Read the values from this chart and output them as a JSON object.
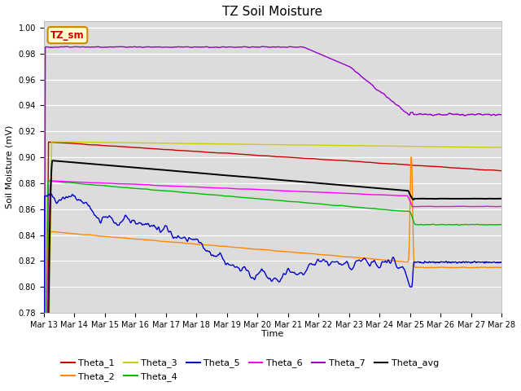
{
  "title": "TZ Soil Moisture",
  "xlabel": "Time",
  "ylabel": "Soil Moisture (mV)",
  "ylim": [
    0.78,
    1.005
  ],
  "background_color": "#dcdcdc",
  "figure_color": "#ffffff",
  "label_box_text": "TZ_sm",
  "label_box_bg": "#ffffcc",
  "label_box_edge": "#cc8800",
  "series_colors": {
    "Theta_1": "#cc0000",
    "Theta_2": "#ff8800",
    "Theta_3": "#cccc00",
    "Theta_4": "#00bb00",
    "Theta_5": "#0000cc",
    "Theta_6": "#ff00ff",
    "Theta_7": "#9900cc",
    "Theta_avg": "#000000"
  },
  "xtick_labels": [
    "Mar 13",
    "Mar 14",
    "Mar 15",
    "Mar 16",
    "Mar 17",
    "Mar 18",
    "Mar 19",
    "Mar 20",
    "Mar 21",
    "Mar 22",
    "Mar 23",
    "Mar 24",
    "Mar 25",
    "Mar 26",
    "Mar 27",
    "Mar 28"
  ]
}
